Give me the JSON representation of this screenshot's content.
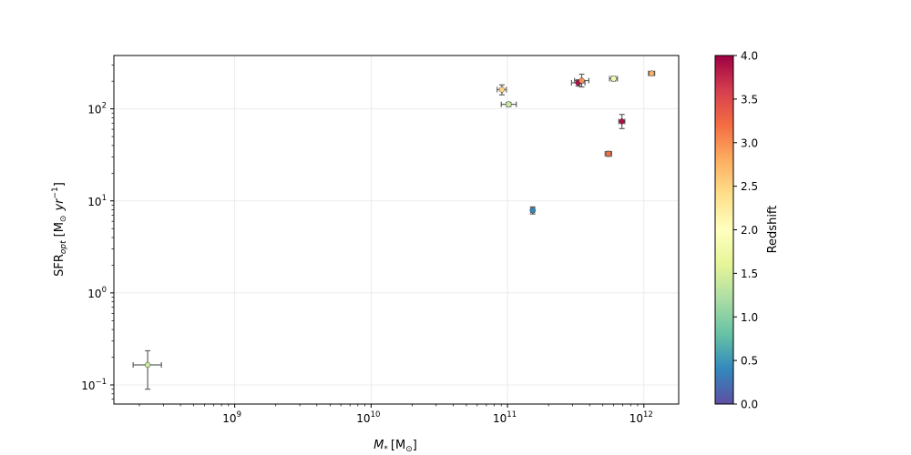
{
  "chart_data": {
    "type": "scatter",
    "xlabel_main": "M",
    "xlabel_sub": "*",
    "xlabel_unit": "[M",
    "xlabel_unit_sub": "⊙",
    "xlabel_close": "]",
    "ylabel_main": "SFR",
    "ylabel_sub": "opt",
    "ylabel_unit": "[M",
    "ylabel_unit_sub": "⊙",
    "ylabel_yr": "yr",
    "ylabel_exp": "−1",
    "ylabel_close": "]",
    "x_scale": "log",
    "y_scale": "log",
    "xlim": [
      130000000.0,
      1800000000000.0
    ],
    "ylim": [
      0.062,
      380
    ],
    "x_ticks": [
      {
        "base": "10",
        "exp": "9",
        "value": 1000000000.0
      },
      {
        "base": "10",
        "exp": "10",
        "value": 10000000000.0
      },
      {
        "base": "10",
        "exp": "11",
        "value": 100000000000.0
      },
      {
        "base": "10",
        "exp": "12",
        "value": 1000000000000.0
      }
    ],
    "y_ticks": [
      {
        "base": "10",
        "exp": "−1",
        "value": 0.1
      },
      {
        "base": "10",
        "exp": "0",
        "value": 1
      },
      {
        "base": "10",
        "exp": "1",
        "value": 10
      },
      {
        "base": "10",
        "exp": "2",
        "value": 100
      }
    ],
    "grid": true,
    "colorbar": {
      "label": "Redshift",
      "min": 0.0,
      "max": 4.0,
      "ticks": [
        "0.0",
        "0.5",
        "1.0",
        "1.5",
        "2.0",
        "2.5",
        "3.0",
        "3.5",
        "4.0"
      ],
      "colormap": "Spectral_r",
      "colors": [
        "#5e4fa2",
        "#3288bd",
        "#66c2a5",
        "#abdda4",
        "#e6f598",
        "#ffffbf",
        "#fee08b",
        "#fdae61",
        "#f46d43",
        "#d53e4f",
        "#9e0142"
      ]
    },
    "points": [
      {
        "x": 230000000.0,
        "y": 0.165,
        "xerr_lo": 50000000.0,
        "xerr_hi": 60000000.0,
        "yerr_lo": 0.075,
        "yerr_hi": 0.07,
        "z": 1.4
      },
      {
        "x": 91000000000.0,
        "y": 162,
        "xerr_lo": 7000000000.0,
        "xerr_hi": 7000000000.0,
        "yerr_lo": 20,
        "yerr_hi": 20,
        "z": 2.5
      },
      {
        "x": 102000000000.0,
        "y": 112,
        "xerr_lo": 12000000000.0,
        "xerr_hi": 14000000000.0,
        "yerr_lo": 6,
        "yerr_hi": 6,
        "z": 1.4
      },
      {
        "x": 153000000000.0,
        "y": 7.9,
        "xerr_lo": 5000000000.0,
        "xerr_hi": 5000000000.0,
        "yerr_lo": 0.7,
        "yerr_hi": 0.7,
        "z": 0.4
      },
      {
        "x": 330000000000.0,
        "y": 192,
        "xerr_lo": 35000000000.0,
        "xerr_hi": 40000000000.0,
        "yerr_lo": 15,
        "yerr_hi": 15,
        "z": 3.9
      },
      {
        "x": 350000000000.0,
        "y": 203,
        "xerr_lo": 40000000000.0,
        "xerr_hi": 45000000000.0,
        "yerr_lo": 30,
        "yerr_hi": 35,
        "z": 3.0
      },
      {
        "x": 550000000000.0,
        "y": 32.5,
        "xerr_lo": 30000000000.0,
        "xerr_hi": 30000000000.0,
        "yerr_lo": 2,
        "yerr_hi": 2,
        "z": 3.2
      },
      {
        "x": 600000000000.0,
        "y": 213,
        "xerr_lo": 40000000000.0,
        "xerr_hi": 40000000000.0,
        "yerr_lo": 12,
        "yerr_hi": 12,
        "z": 1.8
      },
      {
        "x": 690000000000.0,
        "y": 73,
        "xerr_lo": 35000000000.0,
        "xerr_hi": 35000000000.0,
        "yerr_lo": 12,
        "yerr_hi": 14,
        "z": 3.9
      },
      {
        "x": 1140000000000.0,
        "y": 243,
        "xerr_lo": 60000000000.0,
        "xerr_hi": 60000000000.0,
        "yerr_lo": 12,
        "yerr_hi": 12,
        "z": 2.8
      }
    ]
  }
}
